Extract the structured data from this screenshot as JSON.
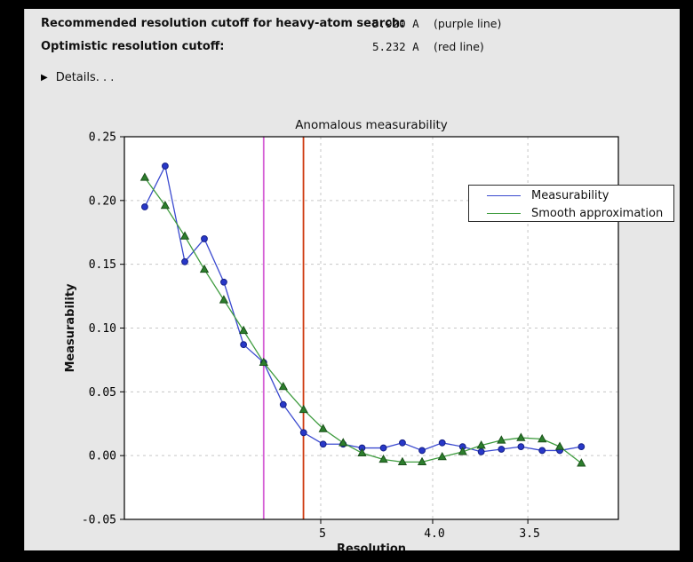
{
  "header": {
    "rows": [
      {
        "label": "Recommended resolution cutoff for heavy-atom search:",
        "value": "5.920 A",
        "note": "(purple line)"
      },
      {
        "label": "Optimistic resolution cutoff:",
        "value": "5.232 A",
        "note": "(red line)"
      }
    ],
    "details_icon": "▶",
    "details_label": "Details. . ."
  },
  "chart_data": {
    "type": "line",
    "title": "Anomalous measurability",
    "xlabel": "Resolution",
    "ylabel": "Measurability",
    "grid": true,
    "legend": {
      "position": "top-right"
    },
    "x_axis": {
      "scale": "1/d^2",
      "reversed": true,
      "range_d": [
        43.2,
        3.165
      ],
      "ticks": [
        {
          "label": "5",
          "d": 5.0
        },
        {
          "label": "4.0",
          "d": 4.0
        },
        {
          "label": "3.5",
          "d": 3.5
        }
      ]
    },
    "y_axis": {
      "lim": [
        -0.05,
        0.25
      ],
      "tick_values": [
        0.25,
        0.2,
        0.15,
        0.1,
        0.05,
        0.0,
        -0.05
      ],
      "ticks": [
        "0.25",
        "0.20",
        "0.15",
        "0.10",
        "0.05",
        "0.00",
        "-0.05"
      ]
    },
    "x_resolution": [
      14.7,
      10.7,
      8.88,
      7.76,
      6.98,
      6.39,
      5.92,
      5.55,
      5.23,
      4.97,
      4.74,
      4.55,
      4.36,
      4.21,
      4.07,
      3.94,
      3.82,
      3.72,
      3.62,
      3.53,
      3.44,
      3.37,
      3.29
    ],
    "series": [
      {
        "name": "Measurability",
        "color": "#3a49cf",
        "marker": "circle",
        "marker_fill": "#2838c8",
        "marker_edge": "#141f85",
        "values": [
          0.195,
          0.227,
          0.152,
          0.17,
          0.136,
          0.087,
          0.073,
          0.04,
          0.018,
          0.009,
          0.009,
          0.006,
          0.006,
          0.01,
          0.004,
          0.01,
          0.007,
          0.003,
          0.005,
          0.007,
          0.004,
          0.004,
          0.007
        ]
      },
      {
        "name": "Smooth approximation",
        "color": "#3f9c3f",
        "marker": "triangle",
        "marker_fill": "#2c7e2c",
        "marker_edge": "#1b511b",
        "values": [
          0.218,
          0.196,
          0.172,
          0.146,
          0.122,
          0.098,
          0.073,
          0.054,
          0.036,
          0.021,
          0.01,
          0.002,
          -0.003,
          -0.005,
          -0.005,
          -0.001,
          0.003,
          0.008,
          0.012,
          0.014,
          0.013,
          0.007,
          -0.006
        ]
      }
    ],
    "vlines": [
      {
        "d": 5.92,
        "color": "#d55fd5",
        "name": "purple-cutoff-line"
      },
      {
        "d": 5.232,
        "color": "#cf3a10",
        "name": "red-cutoff-line"
      }
    ]
  }
}
